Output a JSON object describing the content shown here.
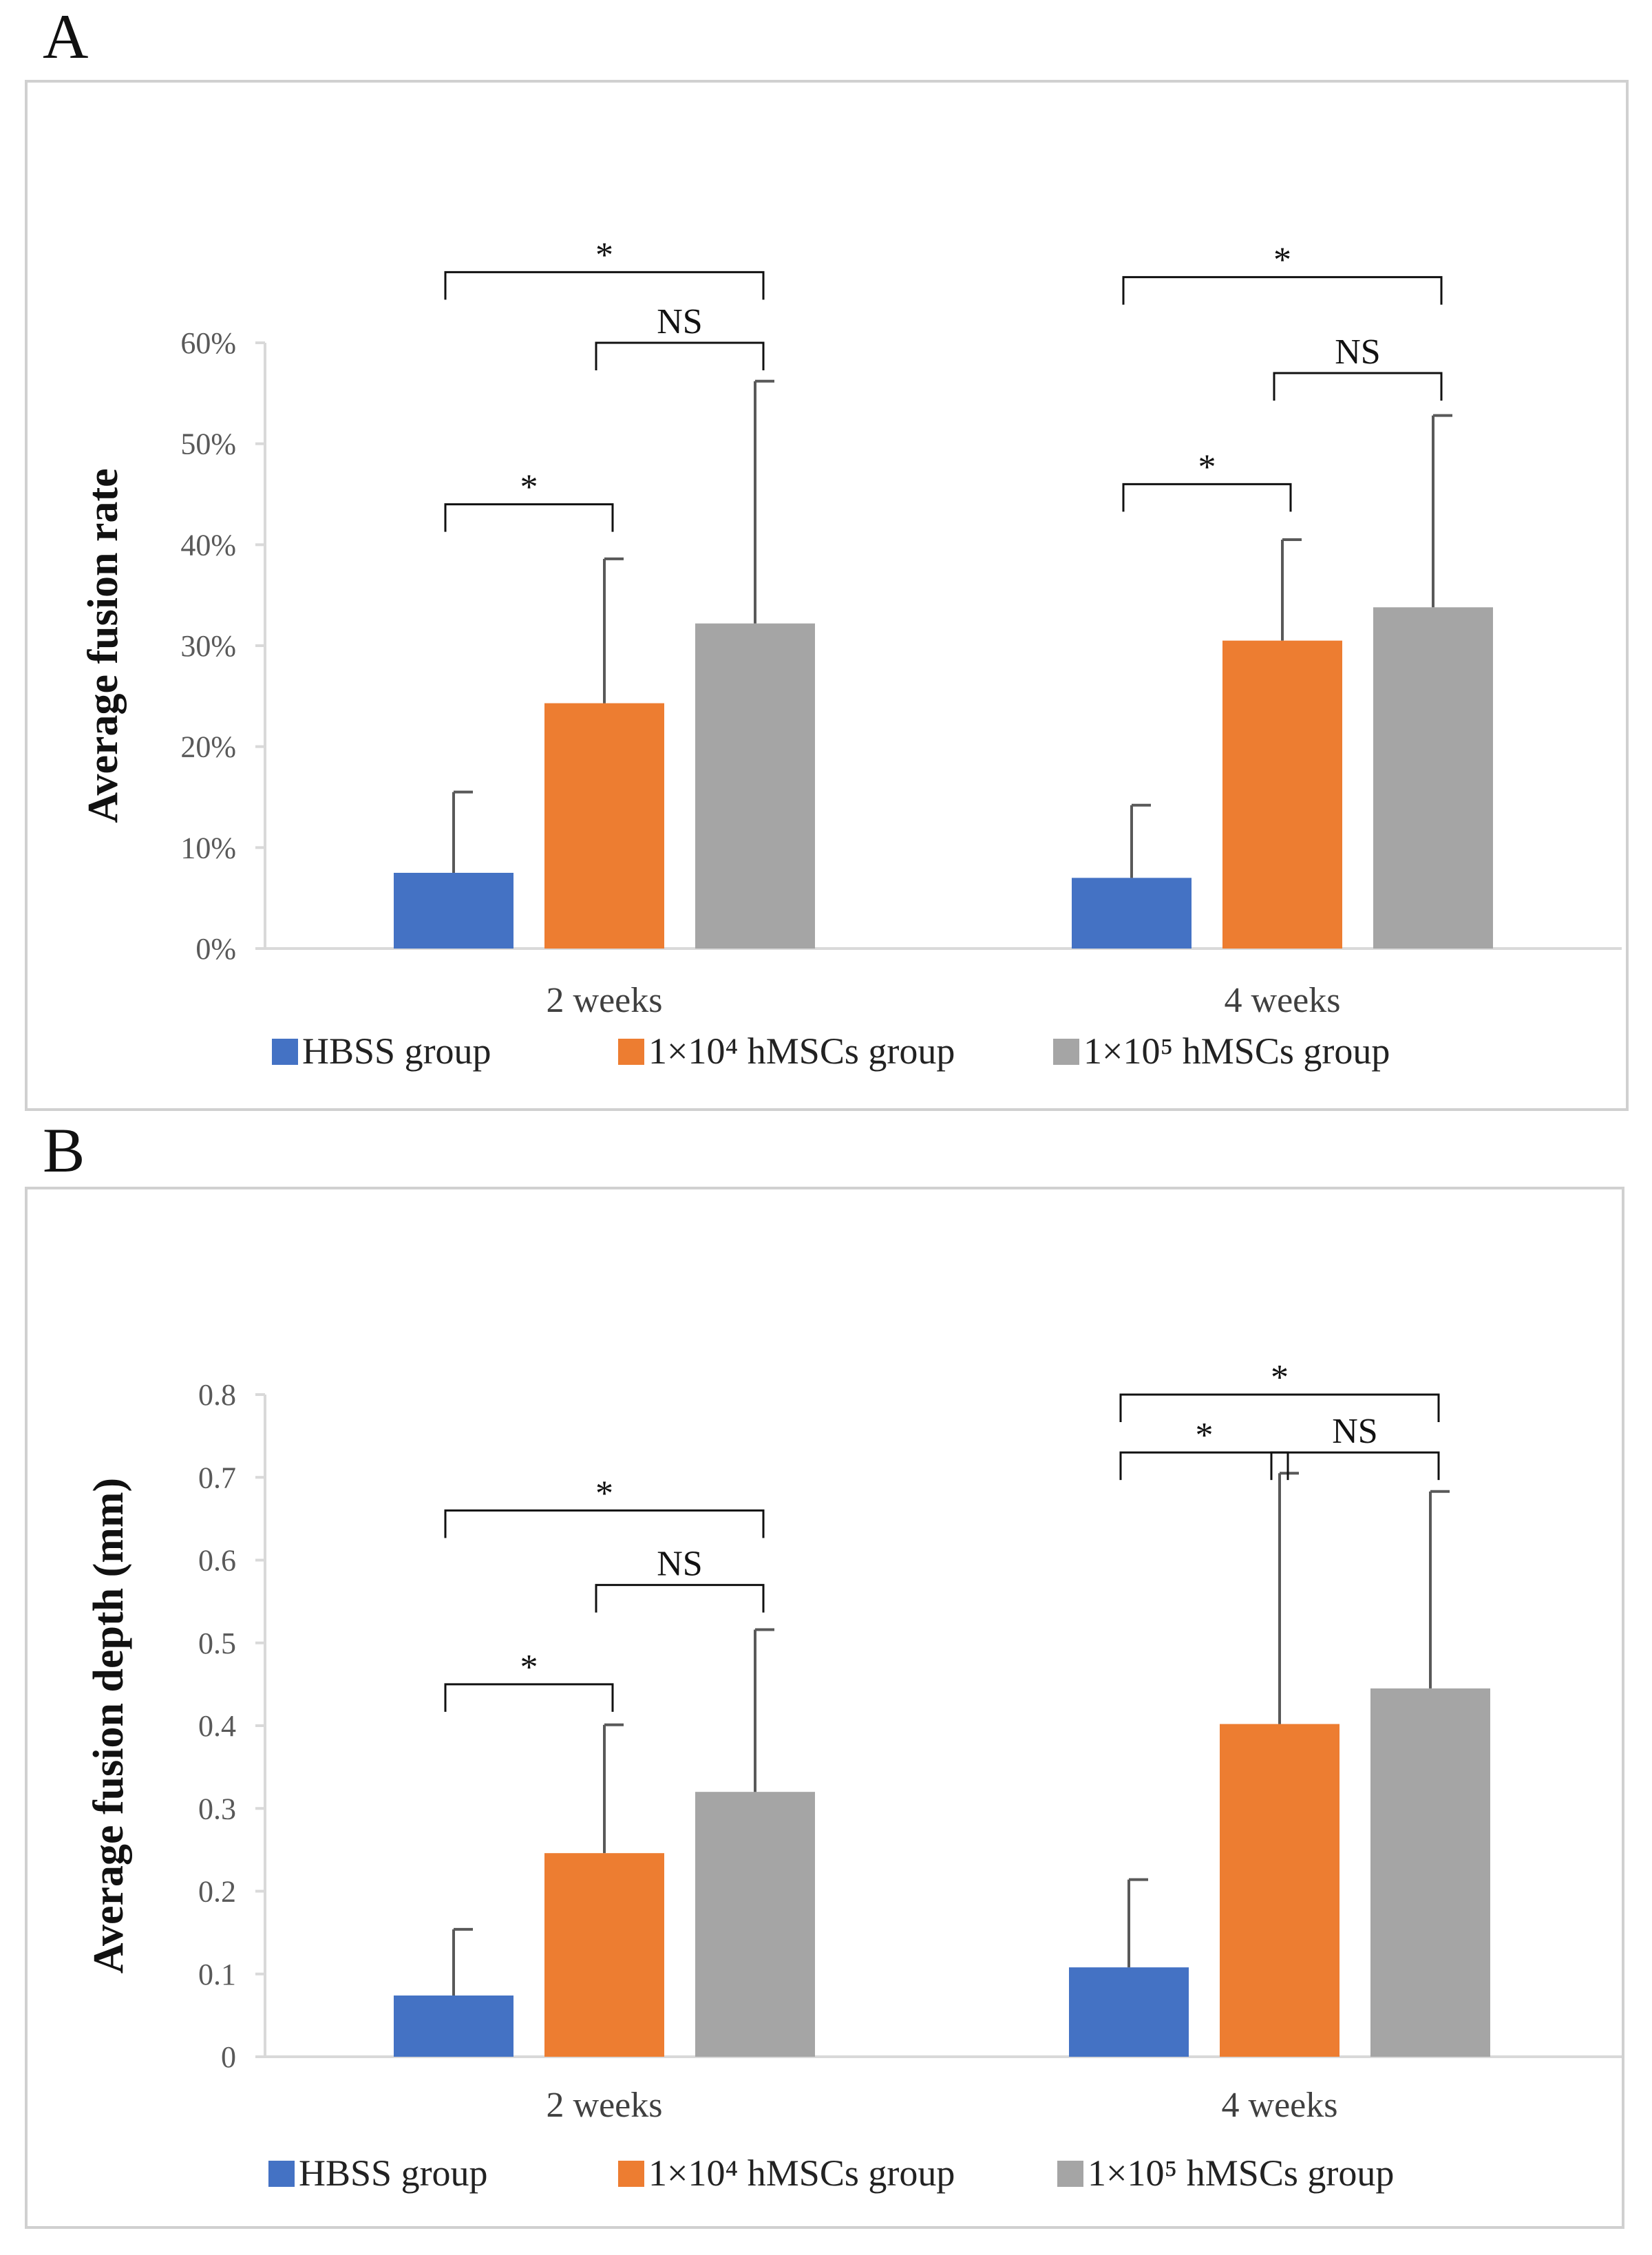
{
  "panels": [
    {
      "letter": "A"
    },
    {
      "letter": "B"
    }
  ],
  "chart_data": [
    {
      "type": "bar",
      "title": "",
      "ylabel": "Average fusion rate",
      "xlabel": "",
      "ylim": [
        0,
        0.6
      ],
      "yticks": [
        0,
        0.1,
        0.2,
        0.3,
        0.4,
        0.5,
        0.6
      ],
      "ytick_labels": [
        "0%",
        "10%",
        "20%",
        "30%",
        "40%",
        "50%",
        "60%"
      ],
      "categories": [
        "2 weeks",
        "4 weeks"
      ],
      "series": [
        {
          "name": "HBSS group",
          "color": "#4472C4",
          "values": [
            0.075,
            0.07
          ],
          "errors": [
            0.08,
            0.072
          ]
        },
        {
          "name": "1×10⁴ hMSCs group",
          "color": "#ED7D31",
          "values": [
            0.243,
            0.305
          ],
          "errors": [
            0.143,
            0.1
          ]
        },
        {
          "name": "1×10⁵ hMSCs group",
          "color": "#A5A5A5",
          "values": [
            0.322,
            0.338
          ],
          "errors": [
            0.24,
            0.19
          ]
        }
      ],
      "legend": [
        {
          "text": "HBSS group",
          "color": "#4472C4"
        },
        {
          "text": "1×10⁴ hMSCs group",
          "color": "#ED7D31"
        },
        {
          "text": "1×10⁵ hMSCs group",
          "color": "#A5A5A5"
        }
      ],
      "legend_position": "bottom",
      "grid": false,
      "significance": [
        {
          "group": 0,
          "from": 0,
          "to": 1,
          "label": "*",
          "level": 0.44
        },
        {
          "group": 0,
          "from": 1,
          "to": 2,
          "label": "NS",
          "level": 0.6
        },
        {
          "group": 0,
          "from": 0,
          "to": 2,
          "label": "*",
          "level": 0.67
        },
        {
          "group": 1,
          "from": 0,
          "to": 1,
          "label": "*",
          "level": 0.46
        },
        {
          "group": 1,
          "from": 1,
          "to": 2,
          "label": "NS",
          "level": 0.57
        },
        {
          "group": 1,
          "from": 0,
          "to": 2,
          "label": "*",
          "level": 0.665
        }
      ]
    },
    {
      "type": "bar",
      "title": "",
      "ylabel": "Average fusion depth (mm)",
      "xlabel": "",
      "ylim": [
        0,
        0.8
      ],
      "yticks": [
        0,
        0.1,
        0.2,
        0.3,
        0.4,
        0.5,
        0.6,
        0.7,
        0.8
      ],
      "ytick_labels": [
        "0",
        "0.1",
        "0.2",
        "0.3",
        "0.4",
        "0.5",
        "0.6",
        "0.7",
        "0.8"
      ],
      "categories": [
        "2 weeks",
        "4 weeks"
      ],
      "series": [
        {
          "name": "HBSS group",
          "color": "#4472C4",
          "values": [
            0.074,
            0.108
          ],
          "errors": [
            0.08,
            0.106
          ]
        },
        {
          "name": "1×10⁴ hMSCs group",
          "color": "#ED7D31",
          "values": [
            0.246,
            0.402
          ],
          "errors": [
            0.155,
            0.303
          ]
        },
        {
          "name": "1×10⁵ hMSCs group",
          "color": "#A5A5A5",
          "values": [
            0.32,
            0.445
          ],
          "errors": [
            0.196,
            0.238
          ]
        }
      ],
      "legend": [
        {
          "text": "HBSS group",
          "color": "#4472C4"
        },
        {
          "text": "1×10⁴ hMSCs group",
          "color": "#ED7D31"
        },
        {
          "text": "1×10⁵ hMSCs group",
          "color": "#A5A5A5"
        }
      ],
      "legend_position": "bottom",
      "grid": false,
      "significance": [
        {
          "group": 0,
          "from": 0,
          "to": 1,
          "label": "*",
          "level": 0.45
        },
        {
          "group": 0,
          "from": 1,
          "to": 2,
          "label": "NS",
          "level": 0.57
        },
        {
          "group": 0,
          "from": 0,
          "to": 2,
          "label": "*",
          "level": 0.66
        },
        {
          "group": 1,
          "from": 0,
          "to": 1,
          "label": "*",
          "level": 0.73
        },
        {
          "group": 1,
          "from": 1,
          "to": 2,
          "label": "NS",
          "level": 0.73
        },
        {
          "group": 1,
          "from": 0,
          "to": 2,
          "label": "*",
          "level": 0.8
        }
      ]
    }
  ]
}
